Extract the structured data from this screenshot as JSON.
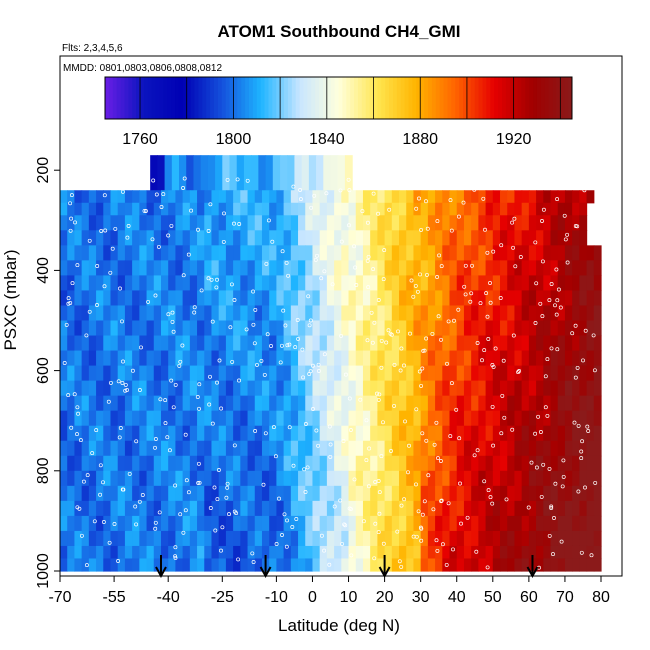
{
  "chart_data": {
    "type": "heatmap",
    "title": "ATOM1 Southbound CH4_GMI",
    "flights_note": "Flts: 2,3,4,5,6",
    "dates_note": "MMDD: 0801,0803,0806,0808,0812",
    "xlabel": "Latitude (deg N)",
    "ylabel": "PSXC (mbar)",
    "xlim": [
      -70,
      80
    ],
    "ylim": [
      1000,
      0
    ],
    "x_ticks": [
      -70,
      -55,
      -40,
      -25,
      -10,
      0,
      10,
      20,
      30,
      40,
      50,
      60,
      70,
      80
    ],
    "x_tick_labels": [
      "-70",
      "-55",
      "-40",
      "-25",
      "-10",
      "0",
      "10",
      "20",
      "30",
      "40",
      "50",
      "60",
      "70",
      "80"
    ],
    "y_ticks": [
      200,
      400,
      600,
      800,
      1000
    ],
    "y_tick_labels": [
      "200",
      "400",
      "600",
      "800",
      "1000"
    ],
    "colorbar": {
      "range": [
        1745,
        1945
      ],
      "ticks": [
        1760,
        1800,
        1840,
        1880,
        1920
      ],
      "tick_labels": [
        "1760",
        "1800",
        "1840",
        "1880",
        "1920"
      ],
      "gridlines": [
        1760,
        1780,
        1800,
        1820,
        1840,
        1860,
        1880,
        1900,
        1920,
        1940
      ],
      "colors": [
        "#6a1ee6",
        "#0a14be",
        "#0000b4",
        "#1450dc",
        "#1eb4ff",
        "#c8e6ff",
        "#ffffdc",
        "#ffe650",
        "#ffb400",
        "#ff6400",
        "#e60000",
        "#a00000",
        "#8b1a1a"
      ]
    },
    "field": {
      "lat_edges": [
        -70,
        80
      ],
      "row_edges_pressure": [
        170,
        240,
        265,
        290,
        320,
        350,
        380,
        410,
        440,
        470,
        500,
        530,
        560,
        590,
        620,
        650,
        680,
        710,
        740,
        770,
        800,
        830,
        860,
        890,
        920,
        950,
        975,
        1000
      ],
      "description": "CH4 increases from ~1800 ppb south of 10S to ~1930 ppb north of 50N"
    },
    "markers": {
      "type": "downward-arrow",
      "latitudes": [
        -42,
        -13,
        20,
        61
      ]
    }
  }
}
